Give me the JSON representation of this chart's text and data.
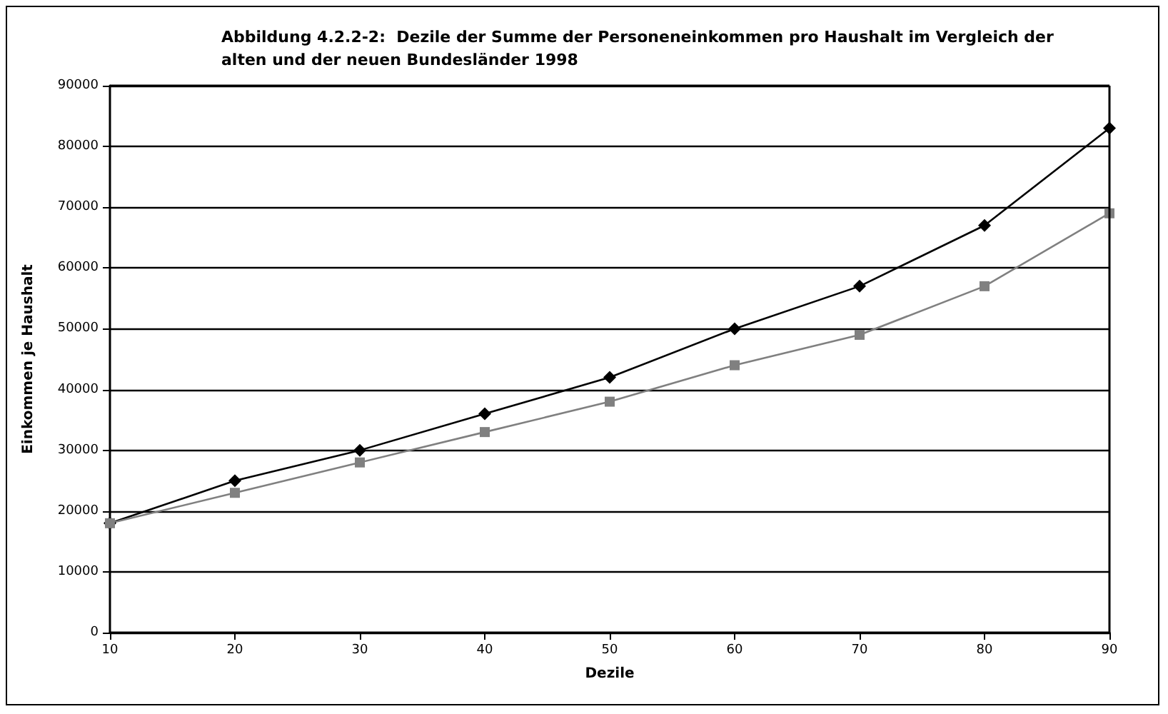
{
  "chart_data": {
    "type": "line",
    "title": "Abbildung 4.2.2-2:  Dezile der Summe der Personeneinkommen pro Haushalt im Vergleich der\nalten und der neuen Bundesländer 1998",
    "xlabel": "Dezile",
    "ylabel": "Einkommen je Haushalt",
    "x": [
      10,
      20,
      30,
      40,
      50,
      60,
      70,
      80,
      90
    ],
    "series": [
      {
        "color": "#000000",
        "marker": "diamond",
        "values": [
          18000,
          25000,
          30000,
          36000,
          42000,
          50000,
          57000,
          67000,
          83000
        ]
      },
      {
        "color": "#808080",
        "marker": "square",
        "values": [
          18000,
          23000,
          28000,
          33000,
          38000,
          44000,
          49000,
          57000,
          69000
        ]
      }
    ],
    "xlim": [
      10,
      90
    ],
    "xticks": [
      10,
      20,
      30,
      40,
      50,
      60,
      70,
      80,
      90
    ],
    "ylim": [
      0,
      90000
    ],
    "yticks": [
      0,
      10000,
      20000,
      30000,
      40000,
      50000,
      60000,
      70000,
      80000,
      90000
    ],
    "grid": "y",
    "line_style": "solid"
  }
}
